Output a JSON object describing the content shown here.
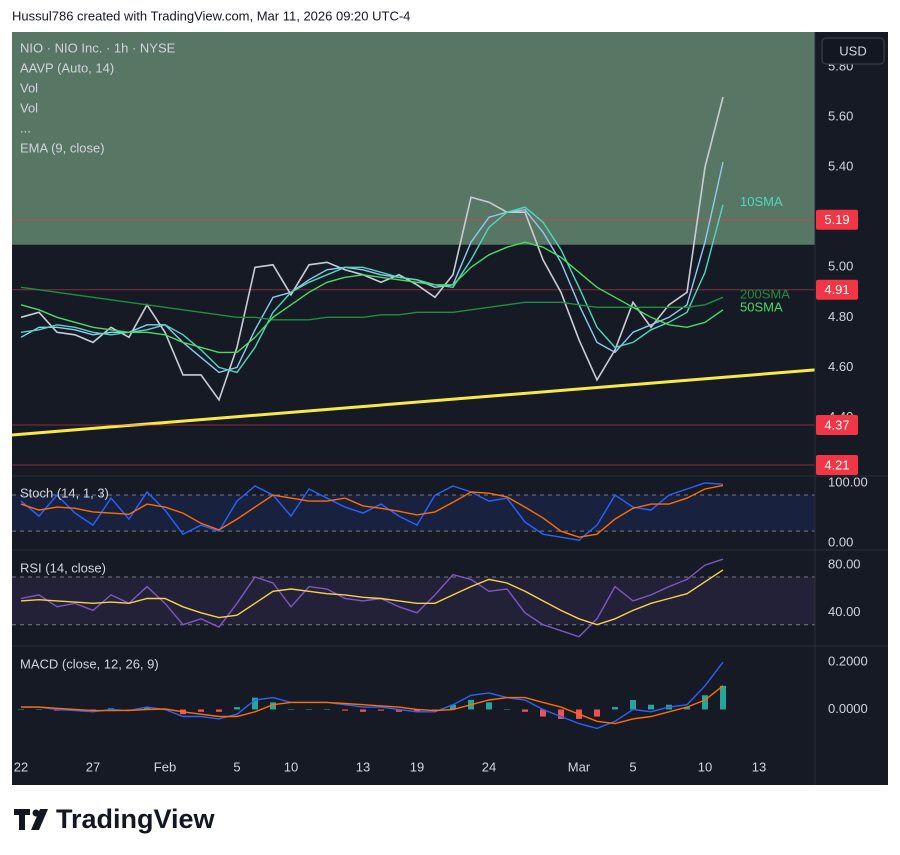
{
  "caption": "Hussul786 created with TradingView.com, Mar 11, 2026 09:20 UTC-4",
  "brand": "TradingView",
  "chart_data": [
    {
      "type": "line",
      "title": "NIO · NIO Inc. · 1h · NYSE",
      "indicators": [
        "AAVP (Auto, 14)",
        "Vol",
        "Vol",
        "..."
      ],
      "unit_label": "USD",
      "ylim": [
        4.17,
        5.94
      ],
      "yticks": [
        {
          "value": 5.8,
          "label": "5.80"
        },
        {
          "value": 5.6,
          "label": "5.60"
        },
        {
          "value": 5.4,
          "label": "5.40"
        },
        {
          "value": 5.0,
          "label": "5.00"
        },
        {
          "value": 4.8,
          "label": "4.80"
        },
        {
          "value": 4.6,
          "label": "4.60"
        },
        {
          "value": 4.4,
          "label": "4.40"
        }
      ],
      "grid": false,
      "shaded_range": {
        "from": 5.09,
        "color": "#6f9579"
      },
      "levels": [
        5.19,
        4.91,
        4.37,
        4.21
      ],
      "level_color": "#f23645",
      "trendline": {
        "from": 4.33,
        "to": 4.59,
        "color": "#f7e94a"
      },
      "series": [
        {
          "color": "#c9ccd4",
          "values": [
            4.8,
            4.82,
            4.74,
            4.73,
            4.7,
            4.76,
            4.72,
            4.85,
            4.74,
            4.57,
            4.57,
            4.47,
            4.68,
            5.0,
            5.01,
            4.89,
            5.01,
            5.02,
            4.99,
            4.97,
            4.94,
            4.97,
            4.93,
            4.88,
            4.97,
            5.28,
            5.26,
            5.22,
            5.22,
            5.03,
            4.9,
            4.71,
            4.55,
            4.67,
            4.86,
            4.76,
            4.85,
            4.9,
            5.4,
            5.68,
            null,
            null,
            null,
            null,
            null
          ]
        },
        {
          "name": "EMA (9, close)",
          "color": "#8ecbf0",
          "values": [
            4.72,
            4.76,
            4.76,
            4.75,
            4.73,
            4.74,
            4.74,
            4.77,
            4.77,
            4.7,
            4.64,
            4.58,
            4.6,
            4.75,
            4.88,
            4.9,
            4.95,
            4.99,
            5.0,
            4.99,
            4.97,
            4.96,
            4.95,
            4.92,
            4.93,
            5.1,
            5.2,
            5.22,
            5.23,
            5.14,
            5.02,
            4.85,
            4.7,
            4.66,
            4.74,
            4.77,
            4.8,
            4.85,
            5.1,
            5.42,
            null,
            null,
            null,
            null,
            null
          ]
        },
        {
          "name": "10SMA",
          "color": "#4fd8c0",
          "values": [
            4.74,
            4.75,
            4.77,
            4.76,
            4.74,
            4.73,
            4.74,
            4.75,
            4.77,
            4.73,
            4.67,
            4.6,
            4.58,
            4.68,
            4.82,
            4.9,
            4.94,
            4.97,
            5.0,
            5.0,
            4.98,
            4.96,
            4.95,
            4.93,
            4.92,
            5.03,
            5.16,
            5.22,
            5.24,
            5.18,
            5.07,
            4.92,
            4.76,
            4.68,
            4.7,
            4.75,
            4.78,
            4.82,
            4.98,
            5.25,
            null,
            null,
            null,
            null,
            null
          ]
        },
        {
          "name": "200SMA",
          "color": "#1e8f3e",
          "values": [
            4.92,
            4.91,
            4.9,
            4.89,
            4.88,
            4.87,
            4.86,
            4.85,
            4.84,
            4.83,
            4.82,
            4.81,
            4.8,
            4.8,
            4.79,
            4.79,
            4.79,
            4.8,
            4.8,
            4.8,
            4.81,
            4.81,
            4.82,
            4.82,
            4.82,
            4.83,
            4.84,
            4.85,
            4.86,
            4.86,
            4.86,
            4.85,
            4.84,
            4.84,
            4.84,
            4.84,
            4.84,
            4.84,
            4.85,
            4.88,
            null,
            null,
            null,
            null,
            null
          ]
        },
        {
          "name": "50SMA",
          "color": "#4cd964",
          "values": [
            4.85,
            4.83,
            4.8,
            4.78,
            4.76,
            4.75,
            4.74,
            4.74,
            4.73,
            4.7,
            4.68,
            4.66,
            4.66,
            4.72,
            4.8,
            4.85,
            4.9,
            4.94,
            4.96,
            4.97,
            4.96,
            4.95,
            4.94,
            4.93,
            4.93,
            5.0,
            5.05,
            5.08,
            5.1,
            5.08,
            5.04,
            4.98,
            4.92,
            4.88,
            4.84,
            4.8,
            4.77,
            4.76,
            4.78,
            4.83,
            null,
            null,
            null,
            null,
            null
          ]
        }
      ]
    },
    {
      "type": "line",
      "title": "Stoch (14, 1, 3)",
      "ylim": [
        -8,
        110
      ],
      "yticks": [
        {
          "value": 100,
          "label": "100.00"
        },
        {
          "value": 0,
          "label": "0.00"
        }
      ],
      "bands": [
        20,
        80
      ],
      "band_color": "#2962ff",
      "series": [
        {
          "color": "#2962ff",
          "values": [
            70,
            45,
            80,
            50,
            30,
            75,
            40,
            85,
            55,
            15,
            30,
            20,
            70,
            95,
            80,
            45,
            90,
            75,
            60,
            50,
            65,
            45,
            30,
            80,
            95,
            85,
            70,
            75,
            35,
            15,
            10,
            5,
            30,
            80,
            60,
            55,
            80,
            90,
            100,
            98,
            null,
            null,
            null,
            null,
            null
          ]
        },
        {
          "color": "#ff6d00",
          "values": [
            65,
            55,
            60,
            58,
            52,
            50,
            48,
            65,
            60,
            50,
            33,
            22,
            40,
            60,
            80,
            75,
            70,
            70,
            75,
            62,
            58,
            53,
            47,
            52,
            68,
            85,
            83,
            77,
            60,
            42,
            20,
            10,
            15,
            40,
            58,
            65,
            65,
            75,
            90,
            96,
            null,
            null,
            null,
            null,
            null
          ]
        }
      ]
    },
    {
      "type": "line",
      "title": "RSI (14, close)",
      "ylim": [
        13,
        91
      ],
      "yticks": [
        {
          "value": 80,
          "label": "80.00"
        },
        {
          "value": 40,
          "label": "40.00"
        }
      ],
      "bands": [
        30,
        70
      ],
      "band_color": "#7e57c2",
      "series": [
        {
          "color": "#7e57c2",
          "values": [
            52,
            55,
            45,
            48,
            42,
            55,
            48,
            62,
            48,
            30,
            35,
            28,
            48,
            70,
            65,
            45,
            62,
            60,
            52,
            50,
            52,
            45,
            40,
            55,
            72,
            68,
            58,
            60,
            40,
            30,
            25,
            20,
            35,
            62,
            50,
            55,
            62,
            68,
            80,
            85,
            null,
            null,
            null,
            null,
            null
          ]
        },
        {
          "color": "#f7d34a",
          "values": [
            50,
            51,
            50,
            49,
            48,
            49,
            48,
            52,
            52,
            45,
            40,
            36,
            38,
            48,
            58,
            60,
            58,
            56,
            55,
            53,
            52,
            50,
            48,
            48,
            55,
            62,
            68,
            65,
            58,
            50,
            42,
            35,
            30,
            35,
            42,
            48,
            52,
            56,
            66,
            76,
            null,
            null,
            null,
            null,
            null
          ]
        }
      ]
    },
    {
      "type": "line",
      "title": "MACD (close, 12, 26, 9)",
      "ylim": [
        -0.18,
        0.26
      ],
      "yticks": [
        {
          "value": 0.2,
          "label": "0.2000"
        },
        {
          "value": 0,
          "label": "0.0000"
        }
      ],
      "categories": [
        "22",
        null,
        null,
        null,
        "27",
        null,
        null,
        null,
        "Feb",
        null,
        null,
        null,
        "5",
        null,
        null,
        "10",
        null,
        null,
        null,
        "13",
        null,
        null,
        "19",
        null,
        null,
        null,
        "24",
        null,
        null,
        null,
        null,
        "Mar",
        null,
        null,
        "5",
        null,
        null,
        null,
        "10",
        null,
        null,
        "13",
        null,
        null,
        null
      ],
      "series": [
        {
          "type": "bar",
          "color": "#26a69a",
          "color_down": "#ef5350",
          "values": [
            0,
            0,
            -0.005,
            -0.005,
            -0.005,
            0.005,
            -0.001,
            0.01,
            -0.002,
            -0.02,
            -0.01,
            -0.01,
            0.01,
            0.05,
            0.03,
            0,
            0,
            0,
            -0.005,
            -0.01,
            -0.005,
            -0.01,
            -0.01,
            -0.005,
            0.02,
            0.04,
            0.03,
            0,
            -0.01,
            -0.03,
            -0.04,
            -0.04,
            -0.03,
            0.01,
            0.04,
            0.02,
            0.02,
            0.01,
            0.06,
            0.1,
            null,
            null,
            null,
            null,
            null
          ]
        },
        {
          "color": "#2962ff",
          "values": [
            0.01,
            0.01,
            0,
            -0.005,
            -0.01,
            0,
            -0.005,
            0.01,
            0,
            -0.03,
            -0.03,
            -0.04,
            -0.02,
            0.04,
            0.05,
            0.03,
            0.03,
            0.03,
            0.02,
            0.01,
            0.01,
            0,
            -0.01,
            -0.01,
            0.02,
            0.06,
            0.07,
            0.05,
            0.04,
            0,
            -0.03,
            -0.06,
            -0.08,
            -0.05,
            0,
            -0.01,
            0.01,
            0.02,
            0.1,
            0.2,
            null,
            null,
            null,
            null,
            null
          ]
        },
        {
          "color": "#ff6d00",
          "values": [
            0.01,
            0.01,
            0.005,
            0,
            -0.005,
            -0.005,
            -0.004,
            0,
            0.002,
            -0.01,
            -0.02,
            -0.03,
            -0.03,
            -0.01,
            0.02,
            0.03,
            0.03,
            0.03,
            0.025,
            0.02,
            0.015,
            0.01,
            0,
            -0.005,
            0,
            0.02,
            0.04,
            0.05,
            0.05,
            0.03,
            0.01,
            -0.02,
            -0.05,
            -0.06,
            -0.04,
            -0.03,
            -0.01,
            0.01,
            0.04,
            0.1,
            null,
            null,
            null,
            null,
            null
          ]
        }
      ]
    }
  ]
}
